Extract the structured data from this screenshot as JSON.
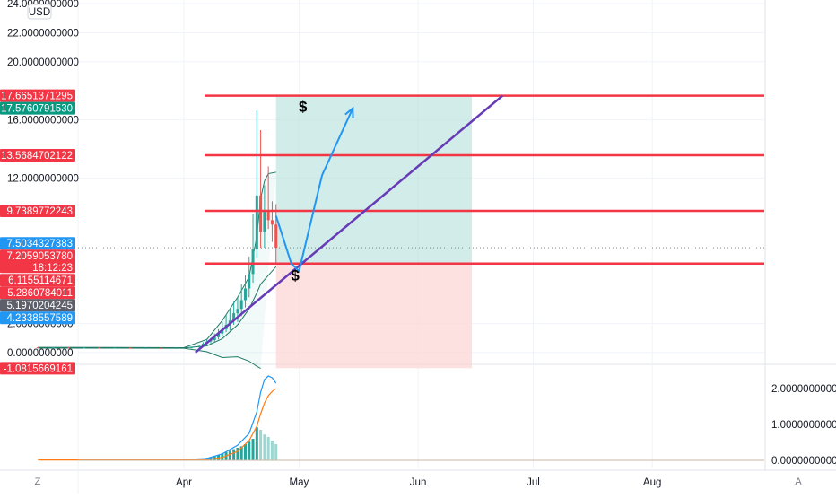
{
  "header": {
    "currency_label": "USD"
  },
  "footer": {
    "left_button_label": "Z",
    "right_button_label": "A"
  },
  "colors": {
    "up": "#26a69a",
    "down": "#ef5350",
    "level_line": "#f23645",
    "trend_line": "#673ab7",
    "arrow": "#2196f3",
    "profit_zone": "#b2dfdb",
    "loss_zone": "#fcd4d4",
    "bb_line": "#1f7a64",
    "indicator_fast": "#2196f3",
    "indicator_slow": "#ff7b16",
    "hist": "#26a69a"
  },
  "chart_data": [
    {
      "type": "candlestick",
      "price_axis": {
        "ylim": [
          -1.08,
          24.0
        ],
        "ticks": [
          "24.0000000000",
          "22.0000000000",
          "20.0000000000",
          "16.0000000000",
          "12.0000000000",
          "2.0000000000",
          "0.0000000000"
        ],
        "tick_values": [
          24,
          22,
          20,
          16,
          12,
          2,
          0
        ]
      },
      "time_axis": {
        "labels": [
          "Apr",
          "May",
          "Jun",
          "Jul",
          "Aug"
        ],
        "label_days": [
          0,
          30,
          61,
          91,
          122
        ]
      },
      "candles": [
        {
          "d": -38,
          "o": 0.35,
          "h": 0.38,
          "l": 0.3,
          "c": 0.33
        },
        {
          "d": -34,
          "o": 0.33,
          "h": 0.36,
          "l": 0.3,
          "c": 0.34
        },
        {
          "d": -30,
          "o": 0.34,
          "h": 0.37,
          "l": 0.31,
          "c": 0.32
        },
        {
          "d": -26,
          "o": 0.32,
          "h": 0.35,
          "l": 0.29,
          "c": 0.33
        },
        {
          "d": -22,
          "o": 0.33,
          "h": 0.36,
          "l": 0.3,
          "c": 0.31
        },
        {
          "d": -18,
          "o": 0.31,
          "h": 0.34,
          "l": 0.28,
          "c": 0.32
        },
        {
          "d": -14,
          "o": 0.32,
          "h": 0.35,
          "l": 0.29,
          "c": 0.3
        },
        {
          "d": -10,
          "o": 0.3,
          "h": 0.34,
          "l": 0.28,
          "c": 0.31
        },
        {
          "d": -6,
          "o": 0.31,
          "h": 0.34,
          "l": 0.29,
          "c": 0.3
        },
        {
          "d": -2,
          "o": 0.3,
          "h": 0.33,
          "l": 0.28,
          "c": 0.31
        },
        {
          "d": 2,
          "o": 0.31,
          "h": 0.4,
          "l": 0.28,
          "c": 0.36
        },
        {
          "d": 4,
          "o": 0.36,
          "h": 0.5,
          "l": 0.3,
          "c": 0.45
        },
        {
          "d": 5,
          "o": 0.45,
          "h": 0.7,
          "l": 0.4,
          "c": 0.6
        },
        {
          "d": 6,
          "o": 0.6,
          "h": 0.9,
          "l": 0.5,
          "c": 0.75
        },
        {
          "d": 7,
          "o": 0.75,
          "h": 1.0,
          "l": 0.6,
          "c": 0.85
        },
        {
          "d": 8,
          "o": 0.85,
          "h": 1.3,
          "l": 0.7,
          "c": 1.05
        },
        {
          "d": 9,
          "o": 1.05,
          "h": 1.6,
          "l": 0.9,
          "c": 1.3
        },
        {
          "d": 10,
          "o": 1.3,
          "h": 2.1,
          "l": 1.1,
          "c": 1.6
        },
        {
          "d": 11,
          "o": 1.6,
          "h": 2.6,
          "l": 1.4,
          "c": 1.9
        },
        {
          "d": 12,
          "o": 1.9,
          "h": 2.9,
          "l": 1.5,
          "c": 2.2
        },
        {
          "d": 13,
          "o": 2.2,
          "h": 3.5,
          "l": 1.9,
          "c": 2.7
        },
        {
          "d": 14,
          "o": 2.7,
          "h": 3.8,
          "l": 2.1,
          "c": 3.0
        },
        {
          "d": 15,
          "o": 3.0,
          "h": 4.7,
          "l": 2.5,
          "c": 3.6
        },
        {
          "d": 16,
          "o": 3.6,
          "h": 5.3,
          "l": 3.1,
          "c": 4.4
        },
        {
          "d": 17,
          "o": 4.4,
          "h": 6.6,
          "l": 3.8,
          "c": 5.4
        },
        {
          "d": 18,
          "o": 5.4,
          "h": 9.5,
          "l": 4.8,
          "c": 7.1
        },
        {
          "d": 19,
          "o": 7.1,
          "h": 16.65,
          "l": 6.5,
          "c": 10.8
        },
        {
          "d": 20,
          "o": 10.8,
          "h": 15.3,
          "l": 7.2,
          "c": 8.3
        },
        {
          "d": 21,
          "o": 8.3,
          "h": 11.5,
          "l": 7.2,
          "c": 9.8
        },
        {
          "d": 22,
          "o": 9.8,
          "h": 12.8,
          "l": 8.5,
          "c": 9.1
        },
        {
          "d": 23,
          "o": 9.1,
          "h": 10.4,
          "l": 7.6,
          "c": 8.8
        },
        {
          "d": 24,
          "o": 8.8,
          "h": 10.2,
          "l": 6.1,
          "c": 7.2
        }
      ],
      "bollinger": {
        "upper": [
          [
            -38,
            0.35
          ],
          [
            0,
            0.33
          ],
          [
            6,
            0.9
          ],
          [
            10,
            2.2
          ],
          [
            14,
            3.8
          ],
          [
            17,
            5.2
          ],
          [
            19,
            8.0
          ],
          [
            20,
            10.6
          ],
          [
            21,
            11.8
          ],
          [
            22,
            12.3
          ],
          [
            24,
            12.4
          ]
        ],
        "middle": [
          [
            -38,
            0.33
          ],
          [
            0,
            0.31
          ],
          [
            6,
            0.45
          ],
          [
            10,
            0.95
          ],
          [
            14,
            1.9
          ],
          [
            17,
            3.0
          ],
          [
            19,
            4.1
          ],
          [
            20,
            4.7
          ],
          [
            22,
            5.3
          ],
          [
            24,
            5.9
          ]
        ],
        "lower": [
          [
            -38,
            0.3
          ],
          [
            0,
            0.29
          ],
          [
            6,
            0.05
          ],
          [
            10,
            -0.35
          ],
          [
            14,
            -0.3
          ],
          [
            17,
            -0.6
          ],
          [
            19,
            -0.95
          ],
          [
            20,
            -1.1
          ]
        ]
      },
      "horizontal_levels": [
        17.6651371295,
        13.5684702122,
        9.7389772243,
        6.1155114671
      ],
      "trend_line": {
        "from": [
          3,
          0.0
        ],
        "to": [
          83,
          17.6651371295
        ]
      },
      "position": {
        "entry": 6.1155114671,
        "target": 17.576079153,
        "stop": -1.0815669161,
        "start_day": 24,
        "end_day": 75
      },
      "projection_path": [
        [
          24,
          9.4
        ],
        [
          28,
          6.1
        ],
        [
          30,
          5.6
        ],
        [
          36,
          12.2
        ],
        [
          44,
          16.8
        ]
      ],
      "annotations": [
        {
          "text": "$",
          "d": 31,
          "p": 17.0
        },
        {
          "text": "$",
          "d": 29,
          "p": 5.4
        }
      ],
      "price_tags": [
        {
          "value": "17.6651371295",
          "price": 17.6651371295,
          "color": "#f23645"
        },
        {
          "value": "17.5760791530",
          "price": 17.576079153,
          "color": "#089981"
        },
        {
          "value": "13.5684702122",
          "price": 13.5684702122,
          "color": "#f23645"
        },
        {
          "value": "9.7389772243",
          "price": 9.7389772243,
          "color": "#f23645"
        },
        {
          "value": "7.5034327383",
          "price": 7.5034327383,
          "color": "#2196f3"
        },
        {
          "value": "7.2059053780",
          "price": 7.205905378,
          "color": "#f23645",
          "sub": "18:12:23"
        },
        {
          "value": "6.1155114671",
          "price": 6.1155114671,
          "color": "#f23645"
        },
        {
          "value": "5.2860784011",
          "price": 5.2860784011,
          "color": "#f23645"
        },
        {
          "value": "5.1970204245",
          "price": 5.1970204245,
          "color": "#5d606b"
        },
        {
          "value": "4.2338557589",
          "price": 4.2338557589,
          "color": "#2196f3"
        },
        {
          "value": "-1.0815669161",
          "price": -1.0815669161,
          "color": "#f23645"
        }
      ],
      "last_price": 7.205905378
    },
    {
      "type": "line",
      "panel": "indicator",
      "ylim": [
        -0.1,
        2.4
      ],
      "ticks": [
        "2.0000000000",
        "1.0000000000",
        "0.0000000000"
      ],
      "tick_values": [
        2,
        1,
        0
      ],
      "series": [
        {
          "values": [
            [
              -38,
              0.02
            ],
            [
              0,
              0.02
            ],
            [
              6,
              0.05
            ],
            [
              10,
              0.18
            ],
            [
              14,
              0.42
            ],
            [
              17,
              0.75
            ],
            [
              19,
              1.35
            ],
            [
              20,
              1.9
            ],
            [
              21,
              2.25
            ],
            [
              22,
              2.35
            ],
            [
              23,
              2.3
            ],
            [
              24,
              2.15
            ]
          ]
        },
        {
          "values": [
            [
              -38,
              0.01
            ],
            [
              0,
              0.01
            ],
            [
              6,
              0.02
            ],
            [
              10,
              0.08
            ],
            [
              14,
              0.25
            ],
            [
              17,
              0.55
            ],
            [
              19,
              0.95
            ],
            [
              20,
              1.3
            ],
            [
              21,
              1.6
            ],
            [
              22,
              1.8
            ],
            [
              23,
              1.92
            ],
            [
              24,
              2.0
            ]
          ]
        }
      ],
      "histogram": [
        [
          4,
          0.03
        ],
        [
          5,
          0.05
        ],
        [
          6,
          0.07
        ],
        [
          7,
          0.09
        ],
        [
          8,
          0.12
        ],
        [
          9,
          0.15
        ],
        [
          10,
          0.19
        ],
        [
          11,
          0.23
        ],
        [
          12,
          0.27
        ],
        [
          13,
          0.31
        ],
        [
          14,
          0.35
        ],
        [
          15,
          0.39
        ],
        [
          16,
          0.45
        ],
        [
          17,
          0.52
        ],
        [
          18,
          0.6
        ],
        [
          19,
          0.92
        ],
        [
          20,
          0.85
        ],
        [
          21,
          0.72
        ],
        [
          22,
          0.65
        ],
        [
          23,
          0.55
        ],
        [
          24,
          0.45
        ]
      ]
    }
  ]
}
